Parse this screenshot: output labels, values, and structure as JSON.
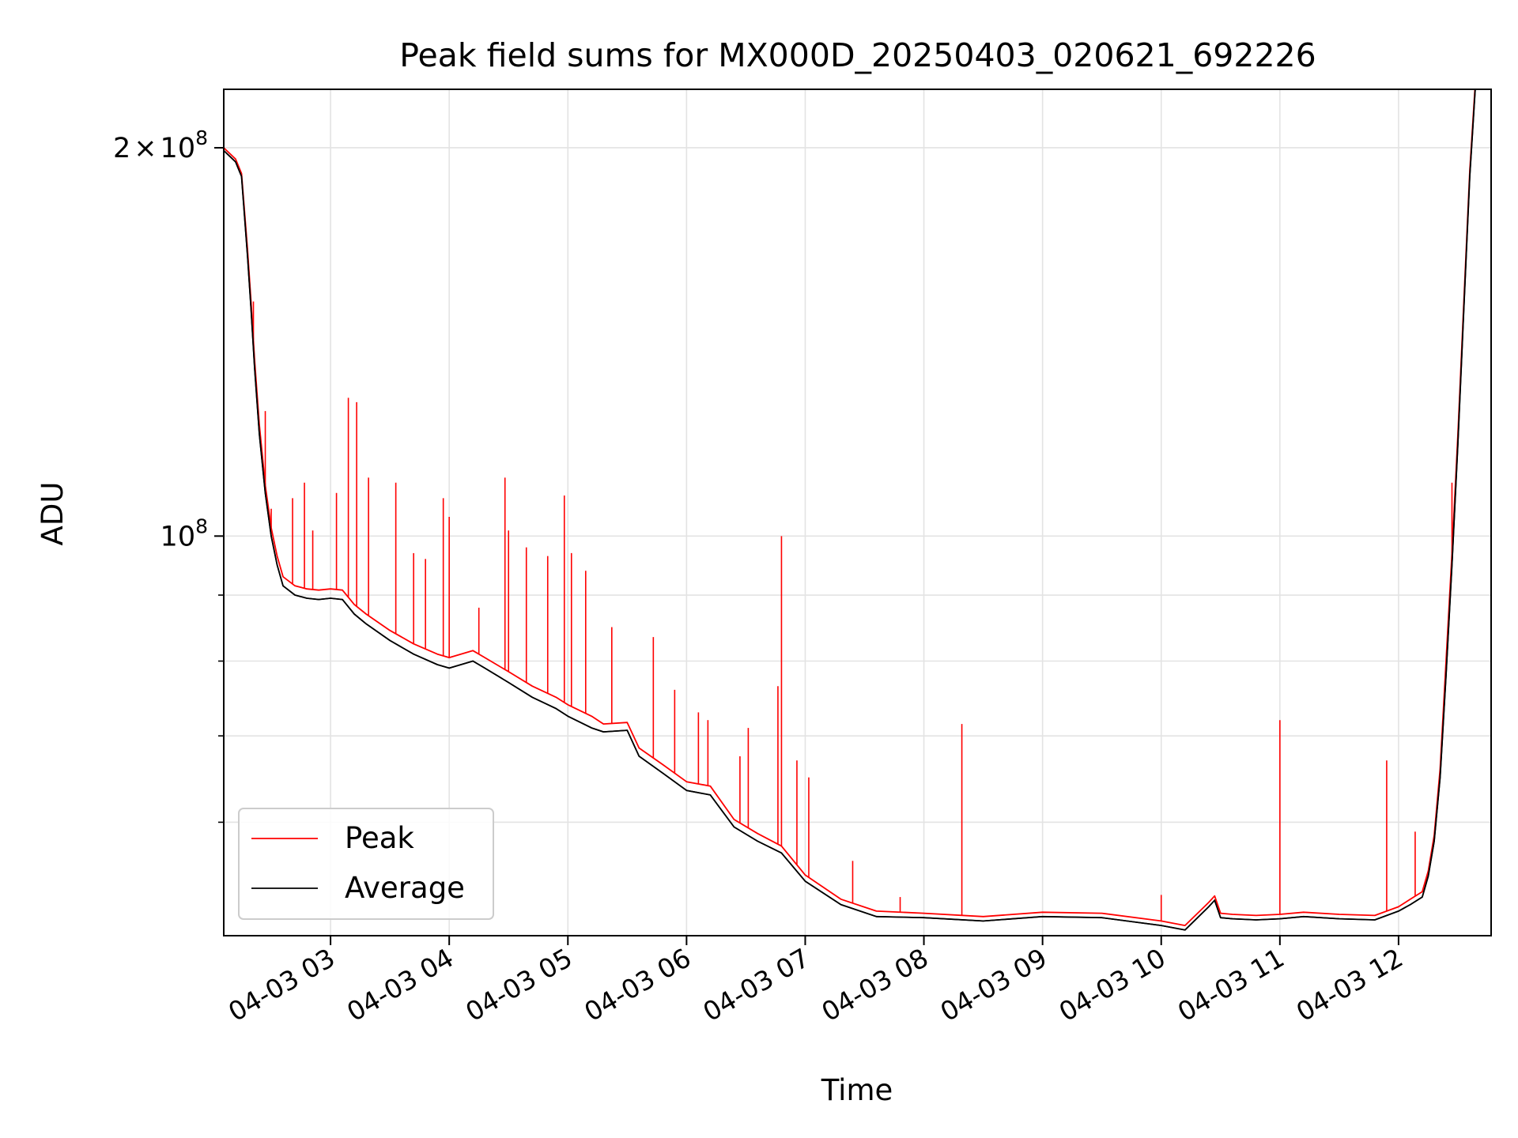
{
  "chart_data": {
    "type": "line",
    "title": "Peak field sums for MX000D_20250403_020621_692226",
    "xlabel": "Time",
    "ylabel": "ADU",
    "yscale": "log",
    "x_unit": "hour of 2025-04-03",
    "xlim": [
      2.1,
      12.78
    ],
    "ylim": [
      49000000,
      222000000
    ],
    "grid": true,
    "legend_location": "lower left",
    "x_ticks": [
      {
        "x": 3,
        "label": "04-03 03"
      },
      {
        "x": 4,
        "label": "04-03 04"
      },
      {
        "x": 5,
        "label": "04-03 05"
      },
      {
        "x": 6,
        "label": "04-03 06"
      },
      {
        "x": 7,
        "label": "04-03 07"
      },
      {
        "x": 8,
        "label": "04-03 08"
      },
      {
        "x": 9,
        "label": "04-03 09"
      },
      {
        "x": 10,
        "label": "04-03 10"
      },
      {
        "x": 11,
        "label": "04-03 11"
      },
      {
        "x": 12,
        "label": "04-03 12"
      }
    ],
    "y_major_ticks": [
      {
        "y": 100000000,
        "base": "10",
        "exp": "8"
      },
      {
        "y": 200000000,
        "mant": "2",
        "times": "×",
        "base": "10",
        "exp": "8"
      }
    ],
    "y_minor_ticks": [
      60000000,
      70000000,
      80000000,
      90000000
    ],
    "series": [
      {
        "name": "Average",
        "color": "#000000",
        "x": [
          2.1,
          2.15,
          2.2,
          2.25,
          2.3,
          2.33,
          2.36,
          2.4,
          2.45,
          2.5,
          2.55,
          2.6,
          2.7,
          2.8,
          2.9,
          3.0,
          3.1,
          3.2,
          3.3,
          3.5,
          3.7,
          3.9,
          4.0,
          4.2,
          4.3,
          4.5,
          4.7,
          4.9,
          5.0,
          5.2,
          5.3,
          5.5,
          5.6,
          5.8,
          6.0,
          6.2,
          6.4,
          6.6,
          6.8,
          7.0,
          7.3,
          7.6,
          8.0,
          8.5,
          9.0,
          9.5,
          10.0,
          10.2,
          10.4,
          10.45,
          10.5,
          10.6,
          10.8,
          11.0,
          11.2,
          11.5,
          11.8,
          12.0,
          12.1,
          12.2,
          12.25,
          12.3,
          12.35,
          12.4,
          12.45,
          12.5,
          12.55,
          12.6,
          12.65
        ],
        "values": [
          199000000,
          197000000,
          195000000,
          190000000,
          165000000,
          150000000,
          135000000,
          120000000,
          108000000,
          100000000,
          95000000,
          91500000,
          90000000,
          89500000,
          89300000,
          89500000,
          89300000,
          87000000,
          85500000,
          83000000,
          81000000,
          79500000,
          79000000,
          80000000,
          79000000,
          77000000,
          75000000,
          73500000,
          72500000,
          71000000,
          70500000,
          70700000,
          67500000,
          65500000,
          63500000,
          63000000,
          59500000,
          58000000,
          56800000,
          54000000,
          51800000,
          50700000,
          50600000,
          50300000,
          50700000,
          50600000,
          49900000,
          49500000,
          51600000,
          52200000,
          50600000,
          50500000,
          50400000,
          50500000,
          50700000,
          50500000,
          50400000,
          51200000,
          51800000,
          52500000,
          54500000,
          58000000,
          65000000,
          78000000,
          95000000,
          118000000,
          150000000,
          190000000,
          225000000
        ]
      },
      {
        "name": "Peak",
        "color": "#ff0000",
        "x": [
          2.1,
          2.15,
          2.2,
          2.25,
          2.3,
          2.33,
          2.36,
          2.4,
          2.45,
          2.5,
          2.55,
          2.6,
          2.7,
          2.8,
          2.9,
          3.0,
          3.1,
          3.2,
          3.3,
          3.5,
          3.7,
          3.9,
          4.0,
          4.2,
          4.3,
          4.5,
          4.7,
          4.9,
          5.0,
          5.2,
          5.3,
          5.5,
          5.6,
          5.8,
          6.0,
          6.2,
          6.4,
          6.6,
          6.8,
          7.0,
          7.3,
          7.6,
          8.0,
          8.5,
          9.0,
          9.5,
          10.0,
          10.2,
          10.4,
          10.45,
          10.5,
          10.6,
          10.8,
          11.0,
          11.2,
          11.5,
          11.8,
          12.0,
          12.1,
          12.2,
          12.25,
          12.3,
          12.35,
          12.4,
          12.45,
          12.5,
          12.55,
          12.6,
          12.65
        ],
        "values": [
          200000000,
          198000000,
          196000000,
          191000000,
          167000000,
          152000000,
          137000000,
          122000000,
          109500000,
          101500000,
          96500000,
          93000000,
          91500000,
          91000000,
          90800000,
          91000000,
          90800000,
          88500000,
          87000000,
          84500000,
          82500000,
          81000000,
          80500000,
          81500000,
          80500000,
          78500000,
          76500000,
          75000000,
          74000000,
          72500000,
          71500000,
          71700000,
          68500000,
          66500000,
          64500000,
          64000000,
          60300000,
          58800000,
          57500000,
          54600000,
          52300000,
          51200000,
          51000000,
          50700000,
          51100000,
          51000000,
          50300000,
          49900000,
          52000000,
          52600000,
          51000000,
          50900000,
          50800000,
          50900000,
          51100000,
          50900000,
          50800000,
          51600000,
          52300000,
          53000000,
          55000000,
          58600000,
          66000000,
          80000000,
          97000000,
          120000000,
          152000000,
          192000000,
          227000000
        ],
        "spikes": [
          {
            "x": 2.35,
            "y": 152000000
          },
          {
            "x": 2.45,
            "y": 125000000
          },
          {
            "x": 2.5,
            "y": 105000000
          },
          {
            "x": 2.68,
            "y": 107000000
          },
          {
            "x": 2.78,
            "y": 110000000
          },
          {
            "x": 2.85,
            "y": 101000000
          },
          {
            "x": 3.05,
            "y": 108000000
          },
          {
            "x": 3.15,
            "y": 128000000
          },
          {
            "x": 3.22,
            "y": 127000000
          },
          {
            "x": 3.32,
            "y": 111000000
          },
          {
            "x": 3.55,
            "y": 110000000
          },
          {
            "x": 3.7,
            "y": 97000000
          },
          {
            "x": 3.8,
            "y": 96000000
          },
          {
            "x": 3.95,
            "y": 107000000
          },
          {
            "x": 4.0,
            "y": 103500000
          },
          {
            "x": 4.25,
            "y": 88000000
          },
          {
            "x": 4.47,
            "y": 111000000
          },
          {
            "x": 4.5,
            "y": 101000000
          },
          {
            "x": 4.65,
            "y": 98000000
          },
          {
            "x": 4.83,
            "y": 96500000
          },
          {
            "x": 4.97,
            "y": 107500000
          },
          {
            "x": 5.03,
            "y": 97000000
          },
          {
            "x": 5.15,
            "y": 94000000
          },
          {
            "x": 5.37,
            "y": 85000000
          },
          {
            "x": 5.72,
            "y": 83500000
          },
          {
            "x": 5.9,
            "y": 76000000
          },
          {
            "x": 6.1,
            "y": 73000000
          },
          {
            "x": 6.18,
            "y": 72000000
          },
          {
            "x": 6.45,
            "y": 67500000
          },
          {
            "x": 6.52,
            "y": 71000000
          },
          {
            "x": 6.77,
            "y": 76500000
          },
          {
            "x": 6.8,
            "y": 100000000
          },
          {
            "x": 6.93,
            "y": 67000000
          },
          {
            "x": 7.03,
            "y": 65000000
          },
          {
            "x": 7.4,
            "y": 56000000
          },
          {
            "x": 7.8,
            "y": 52500000
          },
          {
            "x": 8.32,
            "y": 71500000
          },
          {
            "x": 10.0,
            "y": 52700000
          },
          {
            "x": 11.0,
            "y": 72000000
          },
          {
            "x": 11.9,
            "y": 67000000
          },
          {
            "x": 12.14,
            "y": 59000000
          },
          {
            "x": 12.45,
            "y": 110000000
          }
        ]
      }
    ],
    "legend": [
      {
        "label": "Peak",
        "color": "#ff0000"
      },
      {
        "label": "Average",
        "color": "#000000"
      }
    ]
  }
}
